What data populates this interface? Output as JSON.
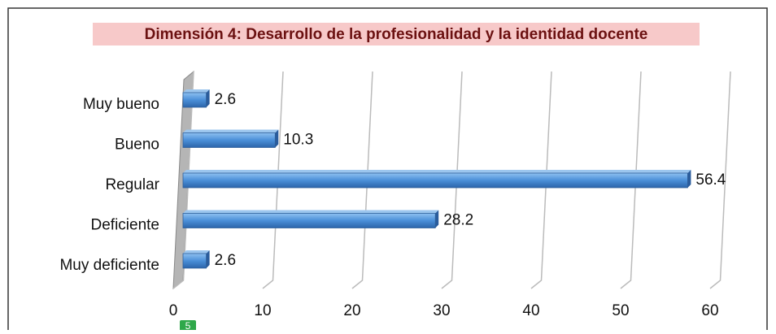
{
  "chart_data": {
    "type": "bar",
    "orientation": "horizontal",
    "title": "Dimensión 4: Desarrollo de la profesionalidad y la identidad docente",
    "categories": [
      "Muy bueno",
      "Bueno",
      "Regular",
      "Deficiente",
      "Muy deficiente"
    ],
    "values": [
      2.6,
      10.3,
      56.4,
      28.2,
      2.6
    ],
    "color": "#4a8fd8",
    "xlim": [
      0,
      60
    ],
    "xticks": [
      0,
      10,
      20,
      30,
      40,
      50,
      60
    ],
    "grid": true
  },
  "badge": "5"
}
